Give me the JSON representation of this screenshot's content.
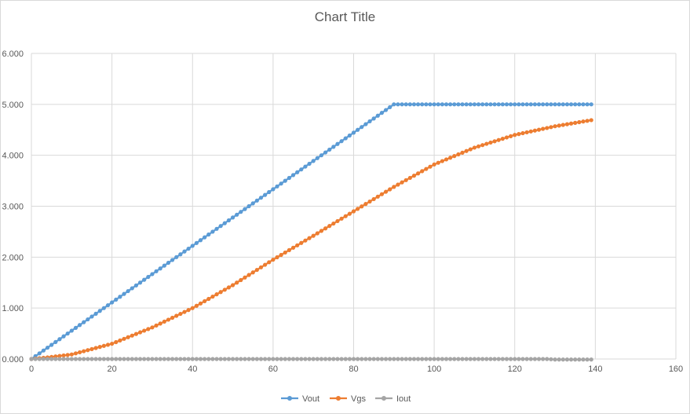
{
  "chart_data": {
    "type": "scatter",
    "title": "Chart Title",
    "xlabel": "",
    "ylabel": "",
    "xlim": [
      0,
      160
    ],
    "ylim": [
      0,
      6
    ],
    "xticks": [
      0,
      20,
      40,
      60,
      80,
      100,
      120,
      140,
      160
    ],
    "yticks": [
      "0.000",
      "1.000",
      "2.000",
      "3.000",
      "4.000",
      "5.000",
      "6.000"
    ],
    "grid": true,
    "legend_position": "bottom",
    "series": [
      {
        "name": "Vout",
        "color": "#5b9bd5",
        "points": [
          [
            0,
            0
          ],
          [
            10,
            0.556
          ],
          [
            20,
            1.111
          ],
          [
            30,
            1.667
          ],
          [
            40,
            2.222
          ],
          [
            50,
            2.778
          ],
          [
            60,
            3.333
          ],
          [
            70,
            3.889
          ],
          [
            80,
            4.444
          ],
          [
            90,
            5.0
          ],
          [
            100,
            5.0
          ],
          [
            110,
            5.0
          ],
          [
            120,
            5.0
          ],
          [
            130,
            5.0
          ],
          [
            139,
            5.0
          ]
        ]
      },
      {
        "name": "Vgs",
        "color": "#ed7d31",
        "points": [
          [
            0,
            0
          ],
          [
            5,
            0.04
          ],
          [
            10,
            0.09
          ],
          [
            20,
            0.3
          ],
          [
            30,
            0.62
          ],
          [
            40,
            1.0
          ],
          [
            50,
            1.45
          ],
          [
            60,
            1.95
          ],
          [
            70,
            2.42
          ],
          [
            80,
            2.9
          ],
          [
            90,
            3.38
          ],
          [
            100,
            3.82
          ],
          [
            110,
            4.15
          ],
          [
            120,
            4.4
          ],
          [
            130,
            4.57
          ],
          [
            139,
            4.69
          ]
        ]
      },
      {
        "name": "Iout",
        "color": "#a5a5a5",
        "points": [
          [
            0,
            0
          ],
          [
            20,
            0
          ],
          [
            40,
            0
          ],
          [
            60,
            0
          ],
          [
            80,
            0
          ],
          [
            100,
            0
          ],
          [
            120,
            0
          ],
          [
            128,
            0
          ],
          [
            130,
            -0.01
          ],
          [
            139,
            -0.01
          ]
        ]
      }
    ]
  }
}
